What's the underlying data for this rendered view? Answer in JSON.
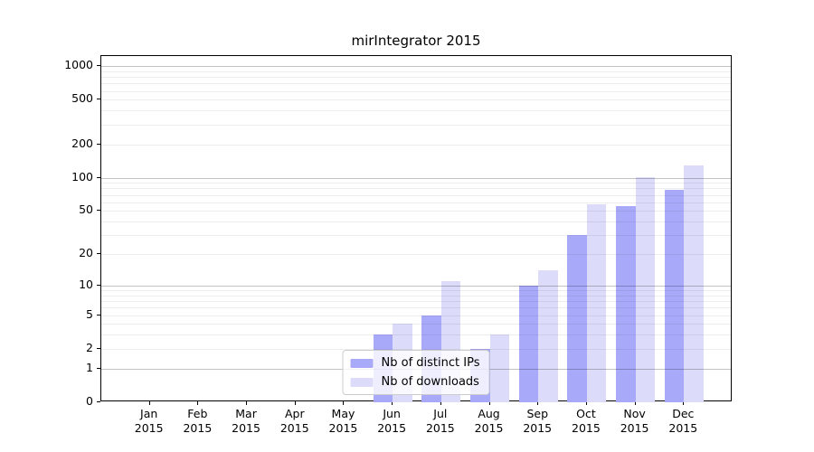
{
  "chart_data": {
    "type": "bar",
    "title": "mirIntegrator 2015",
    "categories": [
      {
        "month": "Jan",
        "year": "2015"
      },
      {
        "month": "Feb",
        "year": "2015"
      },
      {
        "month": "Mar",
        "year": "2015"
      },
      {
        "month": "Apr",
        "year": "2015"
      },
      {
        "month": "May",
        "year": "2015"
      },
      {
        "month": "Jun",
        "year": "2015"
      },
      {
        "month": "Jul",
        "year": "2015"
      },
      {
        "month": "Aug",
        "year": "2015"
      },
      {
        "month": "Sep",
        "year": "2015"
      },
      {
        "month": "Oct",
        "year": "2015"
      },
      {
        "month": "Nov",
        "year": "2015"
      },
      {
        "month": "Dec",
        "year": "2015"
      }
    ],
    "series": [
      {
        "name": "Nb of distinct IPs",
        "color": "#a9a9fa",
        "values": [
          0,
          0,
          0,
          0,
          0,
          3,
          5,
          2,
          10,
          30,
          55,
          78
        ]
      },
      {
        "name": "Nb of downloads",
        "color": "#dcdcfa",
        "values": [
          0,
          0,
          0,
          0,
          0,
          4,
          11,
          3,
          14,
          57,
          102,
          129
        ]
      }
    ],
    "y_axis": {
      "scale": "log1p",
      "ticks": [
        0,
        1,
        2,
        5,
        10,
        20,
        50,
        100,
        200,
        500,
        1000
      ],
      "max": 1230
    },
    "xlabel": "",
    "ylabel": "",
    "grid": "y-major-and-minor",
    "legend_position": "lower-center-inside"
  }
}
